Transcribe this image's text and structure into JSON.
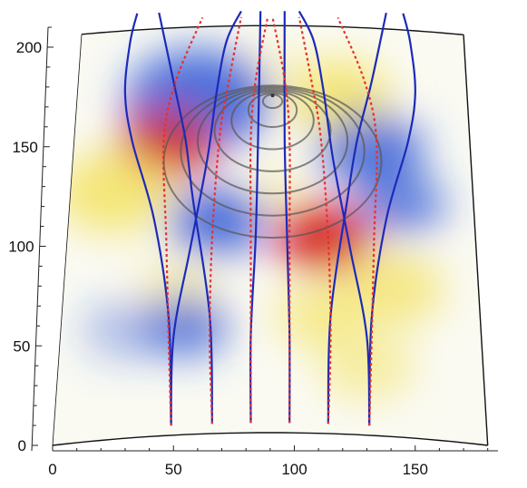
{
  "chart_data": {
    "type": "heatmap",
    "title": "",
    "xlabel": "",
    "ylabel": "",
    "xlim": [
      0,
      180
    ],
    "ylim": [
      0,
      210
    ],
    "x_ticks": [
      0,
      50,
      100,
      150
    ],
    "y_ticks": [
      0,
      50,
      100,
      150,
      200
    ],
    "colormap": {
      "negative": "#2b55d6",
      "zero": "#fafaf5",
      "positive_low": "#f4e46a",
      "positive_high": "#d4201a"
    },
    "contour_center": [
      91,
      172
    ],
    "contour_radii": [
      4,
      10,
      17,
      24,
      31,
      38,
      45
    ],
    "blue_rays": [
      {
        "name": "",
        "points": [
          [
            49,
            5
          ],
          [
            48,
            60
          ],
          [
            42,
            110
          ],
          [
            33,
            150
          ],
          [
            30,
            175
          ],
          [
            32,
            200
          ],
          [
            35,
            215
          ]
        ]
      },
      {
        "name": "",
        "points": [
          [
            49,
            5
          ],
          [
            50,
            50
          ],
          [
            57,
            95
          ],
          [
            64,
            140
          ],
          [
            68,
            175
          ],
          [
            72,
            200
          ],
          [
            78,
            215
          ]
        ]
      },
      {
        "name": "",
        "points": [
          [
            66,
            5
          ],
          [
            65,
            60
          ],
          [
            58,
            120
          ],
          [
            55,
            150
          ],
          [
            50,
            180
          ],
          [
            44,
            215
          ]
        ]
      },
      {
        "name": "",
        "points": [
          [
            82,
            5
          ],
          [
            82,
            50
          ],
          [
            84,
            100
          ],
          [
            85,
            150
          ],
          [
            86,
            215
          ]
        ]
      },
      {
        "name": "",
        "points": [
          [
            98,
            5
          ],
          [
            98,
            50
          ],
          [
            97,
            100
          ],
          [
            96,
            150
          ],
          [
            96,
            215
          ]
        ]
      },
      {
        "name": "",
        "points": [
          [
            114,
            5
          ],
          [
            115,
            60
          ],
          [
            122,
            120
          ],
          [
            126,
            150
          ],
          [
            132,
            180
          ],
          [
            138,
            215
          ]
        ]
      },
      {
        "name": "",
        "points": [
          [
            131,
            5
          ],
          [
            130,
            50
          ],
          [
            123,
            95
          ],
          [
            116,
            140
          ],
          [
            112,
            175
          ],
          [
            108,
            200
          ],
          [
            102,
            215
          ]
        ]
      },
      {
        "name": "",
        "points": [
          [
            131,
            5
          ],
          [
            132,
            60
          ],
          [
            138,
            110
          ],
          [
            147,
            150
          ],
          [
            150,
            175
          ],
          [
            148,
            200
          ],
          [
            145,
            215
          ]
        ]
      }
    ],
    "red_rays": [
      {
        "name": "",
        "points": [
          [
            49,
            5
          ],
          [
            48,
            50
          ],
          [
            47,
            100
          ],
          [
            46,
            150
          ],
          [
            51,
            180
          ],
          [
            62,
            212
          ]
        ]
      },
      {
        "name": "",
        "points": [
          [
            66,
            5
          ],
          [
            65,
            50
          ],
          [
            66,
            100
          ],
          [
            69,
            150
          ],
          [
            73,
            180
          ],
          [
            78,
            212
          ]
        ]
      },
      {
        "name": "",
        "points": [
          [
            82,
            5
          ],
          [
            82,
            50
          ],
          [
            82,
            100
          ],
          [
            82,
            150
          ],
          [
            84,
            180
          ],
          [
            89,
            212
          ]
        ]
      },
      {
        "name": "",
        "points": [
          [
            98,
            5
          ],
          [
            98,
            50
          ],
          [
            98,
            100
          ],
          [
            98,
            150
          ],
          [
            96,
            180
          ],
          [
            91,
            212
          ]
        ]
      },
      {
        "name": "",
        "points": [
          [
            114,
            5
          ],
          [
            115,
            50
          ],
          [
            114,
            100
          ],
          [
            111,
            150
          ],
          [
            107,
            180
          ],
          [
            102,
            212
          ]
        ]
      },
      {
        "name": "",
        "points": [
          [
            131,
            5
          ],
          [
            132,
            50
          ],
          [
            133,
            100
          ],
          [
            134,
            150
          ],
          [
            129,
            180
          ],
          [
            118,
            212
          ]
        ]
      }
    ]
  }
}
